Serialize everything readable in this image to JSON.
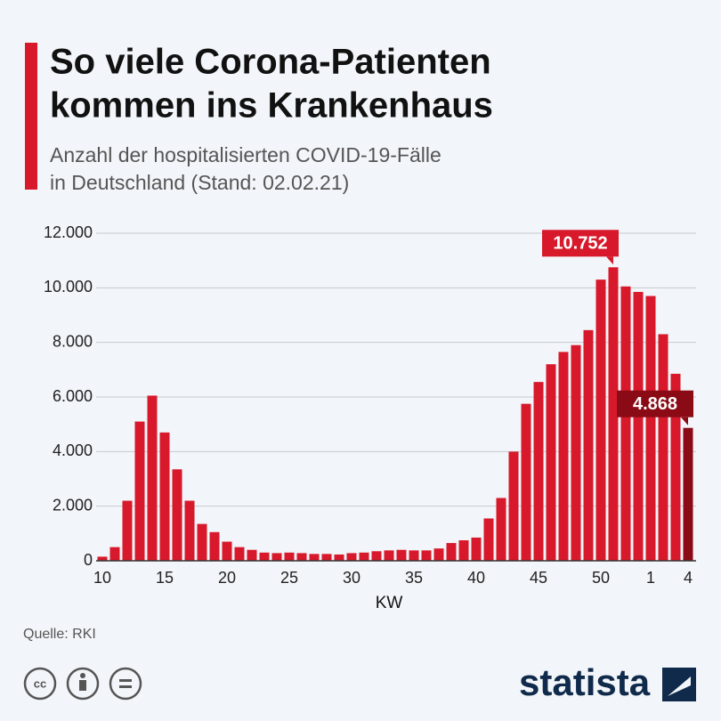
{
  "chart_data": {
    "type": "bar",
    "title": [
      "So viele Corona-Patienten",
      "kommen ins Krankenhaus"
    ],
    "subtitle": [
      "Anzahl der hospitalisierten COVID-19-Fälle",
      "in Deutschland (Stand: 02.02.21)"
    ],
    "x_label": "KW",
    "source": "Quelle: RKI",
    "brand": "statista",
    "categories": [
      "10",
      null,
      null,
      null,
      null,
      "15",
      null,
      null,
      null,
      null,
      "20",
      null,
      null,
      null,
      null,
      "25",
      null,
      null,
      null,
      null,
      "30",
      null,
      null,
      null,
      null,
      "35",
      null,
      null,
      null,
      null,
      "40",
      null,
      null,
      null,
      null,
      "45",
      null,
      null,
      null,
      null,
      "50",
      null,
      null,
      null,
      "1",
      null,
      null,
      "4"
    ],
    "values": [
      150,
      500,
      2200,
      5100,
      6050,
      4700,
      3350,
      2200,
      1350,
      1050,
      700,
      500,
      400,
      300,
      280,
      300,
      280,
      250,
      250,
      230,
      280,
      300,
      350,
      380,
      400,
      380,
      380,
      450,
      650,
      750,
      850,
      1550,
      2300,
      4000,
      5750,
      6550,
      7200,
      7650,
      7900,
      8450,
      10300,
      10752,
      10050,
      9850,
      9700,
      8300,
      6850,
      4868
    ],
    "value_labels": [
      null,
      null,
      null,
      null,
      null,
      null,
      null,
      null,
      null,
      null,
      null,
      null,
      null,
      null,
      null,
      null,
      null,
      null,
      null,
      null,
      null,
      null,
      null,
      null,
      null,
      null,
      null,
      null,
      null,
      null,
      null,
      null,
      null,
      null,
      null,
      null,
      null,
      null,
      null,
      null,
      null,
      "10.752",
      null,
      null,
      null,
      null,
      null,
      "4.868"
    ],
    "colors": [
      "#d7192b",
      "#d7192b",
      "#d7192b",
      "#d7192b",
      "#d7192b",
      "#d7192b",
      "#d7192b",
      "#d7192b",
      "#d7192b",
      "#d7192b",
      "#d7192b",
      "#d7192b",
      "#d7192b",
      "#d7192b",
      "#d7192b",
      "#d7192b",
      "#d7192b",
      "#d7192b",
      "#d7192b",
      "#d7192b",
      "#d7192b",
      "#d7192b",
      "#d7192b",
      "#d7192b",
      "#d7192b",
      "#d7192b",
      "#d7192b",
      "#d7192b",
      "#d7192b",
      "#d7192b",
      "#d7192b",
      "#d7192b",
      "#d7192b",
      "#d7192b",
      "#d7192b",
      "#d7192b",
      "#d7192b",
      "#d7192b",
      "#d7192b",
      "#d7192b",
      "#d7192b",
      "#d7192b",
      "#d7192b",
      "#d7192b",
      "#d7192b",
      "#d7192b",
      "#d7192b",
      "#8a0b15"
    ],
    "ylim": [
      0,
      12000
    ],
    "yticks": [
      0,
      {
        "value": 2000,
        "label": "2.000"
      },
      {
        "value": 4000,
        "label": "4.000"
      },
      {
        "value": 6000,
        "label": "6.000"
      },
      {
        "value": 8000,
        "label": "8.000"
      },
      {
        "value": 10000,
        "label": "10.000"
      },
      {
        "value": 12000,
        "label": "12.000"
      }
    ],
    "grid": true
  }
}
